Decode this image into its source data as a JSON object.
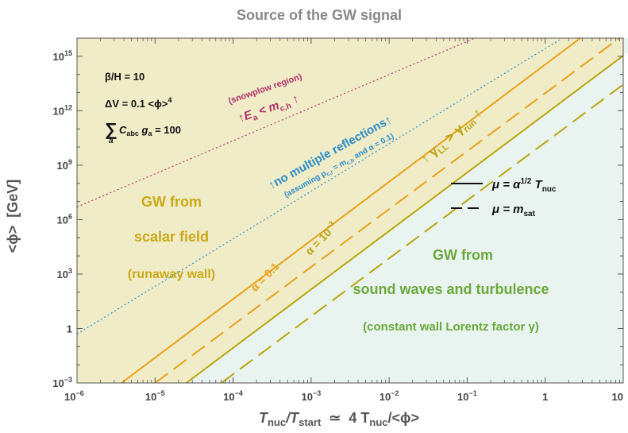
{
  "title": "Source of the GW signal",
  "colors": {
    "scalar_region": "#f1ecc8",
    "sound_region": "#e9f4f0",
    "orange": "#e8a01a",
    "olive": "#b9a40f",
    "blue": "#2a8cc9",
    "magenta": "#b0306a",
    "green": "#6aa83a",
    "scalar_text": "#c9a816",
    "dark": "#111111"
  },
  "chart_data": {
    "type": "line",
    "title": "Source of the GW signal",
    "xlabel": "T_nuc/T_start ≃ 4 T_nuc/<ϕ>",
    "ylabel": "<ϕ> [GeV]",
    "xscale": "log",
    "yscale": "log",
    "xlim_log10": [
      -6,
      1
    ],
    "ylim_log10": [
      -3,
      16
    ],
    "x_ticks": [
      {
        "exp": -6,
        "base": "10",
        "sup": "−6"
      },
      {
        "exp": -5,
        "base": "10",
        "sup": "−5"
      },
      {
        "exp": -4,
        "base": "10",
        "sup": "−4"
      },
      {
        "exp": -3,
        "base": "10",
        "sup": "−3"
      },
      {
        "exp": -2,
        "base": "10",
        "sup": "−2"
      },
      {
        "exp": -1,
        "base": "10",
        "sup": "−1"
      },
      {
        "exp": 0,
        "base": "1",
        "sup": ""
      },
      {
        "exp": 1,
        "base": "10",
        "sup": ""
      }
    ],
    "y_ticks": [
      {
        "exp": -3,
        "base": "10",
        "sup": "−3"
      },
      {
        "exp": 0,
        "base": "1",
        "sup": ""
      },
      {
        "exp": 3,
        "base": "10",
        "sup": "3"
      },
      {
        "exp": 6,
        "base": "10",
        "sup": "6"
      },
      {
        "exp": 9,
        "base": "10",
        "sup": "9"
      },
      {
        "exp": 12,
        "base": "10",
        "sup": "12"
      },
      {
        "exp": 15,
        "base": "10",
        "sup": "15"
      }
    ],
    "series": [
      {
        "name": "α = 0.1, μ = α^1/2 T_nuc",
        "color": "orange",
        "dash": "solid",
        "points_log10": [
          [
            -5.43,
            -3
          ],
          [
            0.45,
            16
          ]
        ]
      },
      {
        "name": "α = 0.1, μ = m_sat",
        "color": "orange",
        "dash": "dashed",
        "points_log10": [
          [
            -5.0,
            -3
          ],
          [
            0.95,
            16
          ]
        ]
      },
      {
        "name": "α = 10^−3, μ = α^1/2 T_nuc",
        "color": "olive",
        "dash": "solid",
        "points_log10": [
          [
            -4.6,
            -3
          ],
          [
            1.3,
            16
          ]
        ]
      },
      {
        "name": "α = 10^−3, μ = m_sat",
        "color": "olive",
        "dash": "dashed",
        "points_log10": [
          [
            -4.15,
            -3
          ],
          [
            1.8,
            16
          ]
        ]
      },
      {
        "name": "no multiple reflections",
        "color": "blue",
        "dash": "dotted",
        "points_log10": [
          [
            -6,
            -0.3
          ],
          [
            0.22,
            16
          ]
        ]
      },
      {
        "name": "snowplow region",
        "color": "magenta",
        "dash": "dotted",
        "points_log10": [
          [
            -6,
            6.7
          ],
          [
            -0.9,
            16
          ]
        ]
      }
    ],
    "regions": [
      {
        "name": "scalar field",
        "color": "scalar_region"
      },
      {
        "name": "sound waves and turbulence",
        "color": "sound_region"
      }
    ]
  },
  "annotations": {
    "beta": "β/H = 10",
    "delta_v": "ΔV = 0.1 <ϕ>",
    "delta_v_sup": "4",
    "sum_sign": "∑",
    "sum_sub": "a",
    "sum_rhs": "C",
    "sum_rhs_sub": "abc",
    "sum_rhs_g": " g",
    "sum_rhs_g_sub": "a",
    "sum_rhs_end": " = 100",
    "snowplow_label": "(snowplow region)",
    "ea_main": "↑E",
    "ea_sub1": "a",
    "ea_mid": " < m",
    "ea_sub2": "c,h",
    "ea_end": " ↑",
    "no_mult": "↑no multiple reflections↑",
    "assuming_1": "(assuming p",
    "assuming_sub1": "c,r",
    "assuming_2": " = m",
    "assuming_sub2": "c,h",
    "assuming_3": " and α = 0.1)",
    "gamma_1": "↑ γ",
    "gamma_sub1": "LL",
    "gamma_mid": " > γ",
    "gamma_sub2": "run",
    "gamma_end": " ↑",
    "alpha_01": "α = 0.1",
    "alpha_1e3": "α = 10",
    "alpha_1e3_sup": "−3",
    "gw_scalar_1": "GW from",
    "gw_scalar_2": "scalar field",
    "gw_scalar_3": "(runaway wall)",
    "gw_sound_1": "GW from",
    "gw_sound_2": "sound waves and turbulence",
    "gw_sound_3": "(constant wall Lorentz factor γ)"
  },
  "legend": {
    "solid_main": "μ = α",
    "solid_sup": "1/2",
    "solid_t": " T",
    "solid_sub": "nuc",
    "dashed_main": "μ = m",
    "dashed_sub": "sat"
  },
  "axis_text": {
    "x_t1": "T",
    "x_sub1": "nuc",
    "x_slash": "/T",
    "x_sub2": "start",
    "x_rest": "  ≃  4 T",
    "x_sub3": "nuc",
    "x_end": "/<ϕ>",
    "y_label": "<ϕ>  [GeV]"
  }
}
